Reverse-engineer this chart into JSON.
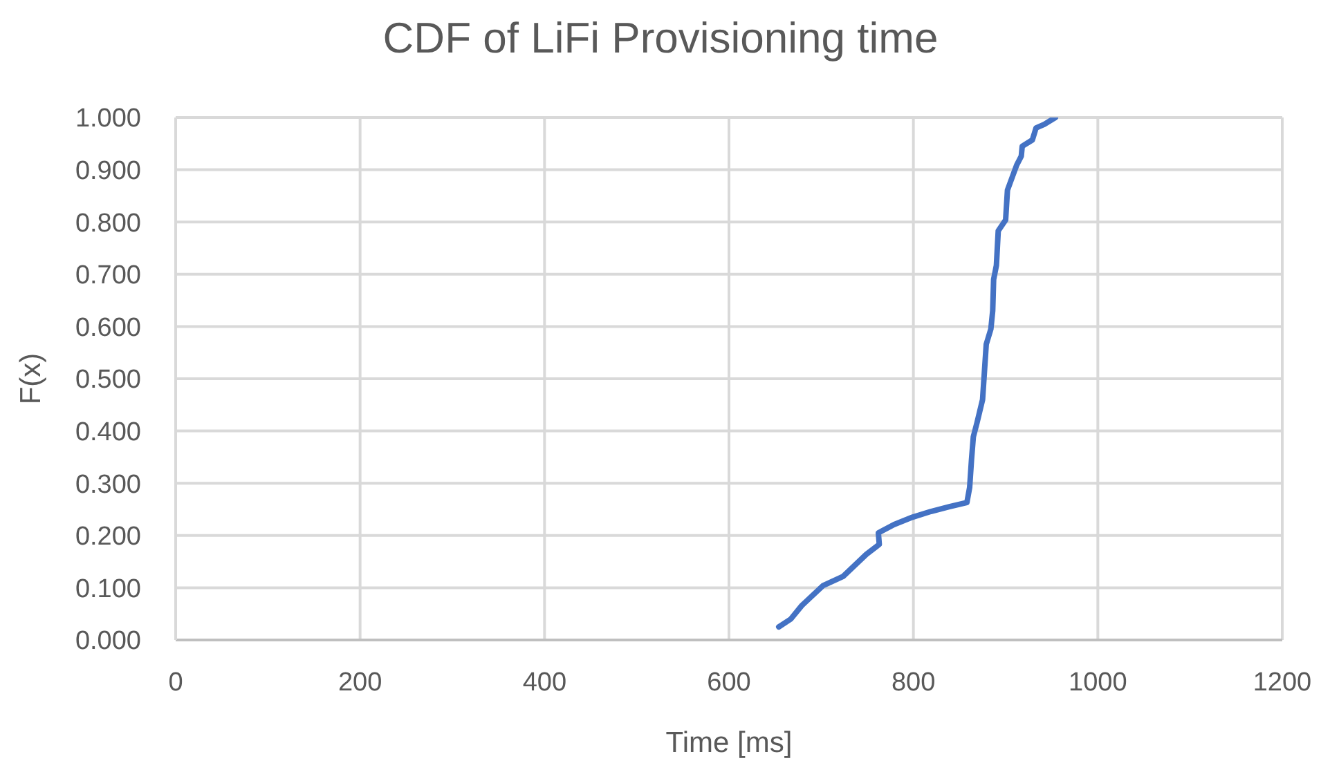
{
  "chart_data": {
    "type": "line",
    "title": "CDF of LiFi Provisioning time",
    "xlabel": "Time [ms]",
    "ylabel": "F(x)",
    "x": [
      654,
      667,
      679,
      702,
      724,
      749,
      763,
      762,
      779,
      799,
      819,
      839,
      858,
      861,
      863,
      865,
      869,
      875,
      877,
      879,
      884,
      886,
      887,
      890,
      892,
      900,
      902,
      912,
      917,
      918,
      929,
      933,
      942,
      954
    ],
    "series": [
      {
        "color": "#4472c4",
        "values": [
          0.025,
          0.04,
          0.066,
          0.104,
          0.122,
          0.164,
          0.183,
          0.205,
          0.221,
          0.235,
          0.246,
          0.255,
          0.263,
          0.292,
          0.345,
          0.389,
          0.416,
          0.46,
          0.513,
          0.566,
          0.595,
          0.63,
          0.69,
          0.717,
          0.783,
          0.804,
          0.861,
          0.909,
          0.926,
          0.945,
          0.957,
          0.98,
          0.987,
          1.0
        ]
      }
    ],
    "xlim": [
      0,
      1200
    ],
    "xticks": [
      0,
      200,
      400,
      600,
      800,
      1000,
      1200
    ],
    "ylim": [
      0,
      1
    ],
    "yticks": [
      {
        "value": 0,
        "label": "0.000"
      },
      {
        "value": 0.1,
        "label": "0.100"
      },
      {
        "value": 0.2,
        "label": "0.200"
      },
      {
        "value": 0.3,
        "label": "0.300"
      },
      {
        "value": 0.4,
        "label": "0.400"
      },
      {
        "value": 0.5,
        "label": "0.500"
      },
      {
        "value": 0.6,
        "label": "0.600"
      },
      {
        "value": 0.7,
        "label": "0.700"
      },
      {
        "value": 0.8,
        "label": "0.800"
      },
      {
        "value": 0.9,
        "label": "0.900"
      },
      {
        "value": 1,
        "label": "1.000"
      }
    ],
    "grid": true,
    "marker": "none",
    "line_style": "solid"
  }
}
